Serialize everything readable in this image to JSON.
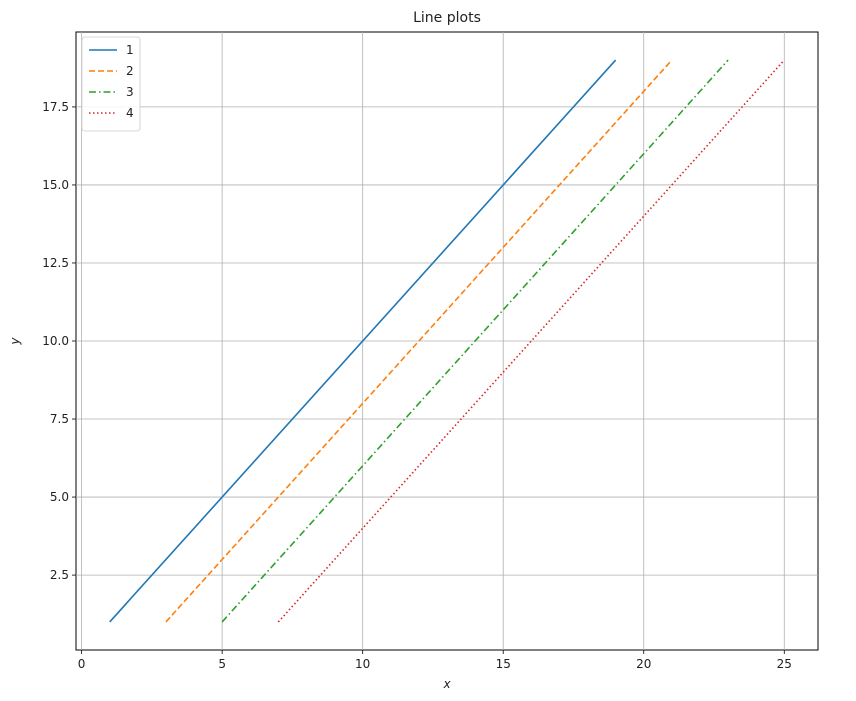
{
  "chart_data": {
    "type": "line",
    "title": "Line plots",
    "xlabel": "x",
    "ylabel": "y",
    "xlim": [
      -0.2,
      26.2
    ],
    "ylim": [
      0.1,
      19.9
    ],
    "xticks": [
      0,
      5,
      10,
      15,
      20,
      25
    ],
    "xtick_labels": [
      "0",
      "5",
      "10",
      "15",
      "20",
      "25"
    ],
    "yticks": [
      2.5,
      5.0,
      7.5,
      10.0,
      12.5,
      15.0,
      17.5
    ],
    "ytick_labels": [
      "2.5",
      "5.0",
      "7.5",
      "10.0",
      "12.5",
      "15.0",
      "17.5"
    ],
    "grid": true,
    "legend_position": "top-left",
    "series": [
      {
        "name": "1",
        "color": "#1f77b4",
        "style": "solid",
        "x": [
          1,
          19
        ],
        "y": [
          1,
          19
        ]
      },
      {
        "name": "2",
        "color": "#ff7f0e",
        "style": "dashed",
        "x": [
          3,
          21
        ],
        "y": [
          1,
          19
        ]
      },
      {
        "name": "3",
        "color": "#2ca02c",
        "style": "dashdot",
        "x": [
          5,
          23
        ],
        "y": [
          1,
          19
        ]
      },
      {
        "name": "4",
        "color": "#d62728",
        "style": "dotted",
        "x": [
          7,
          25
        ],
        "y": [
          1,
          19
        ]
      }
    ]
  }
}
